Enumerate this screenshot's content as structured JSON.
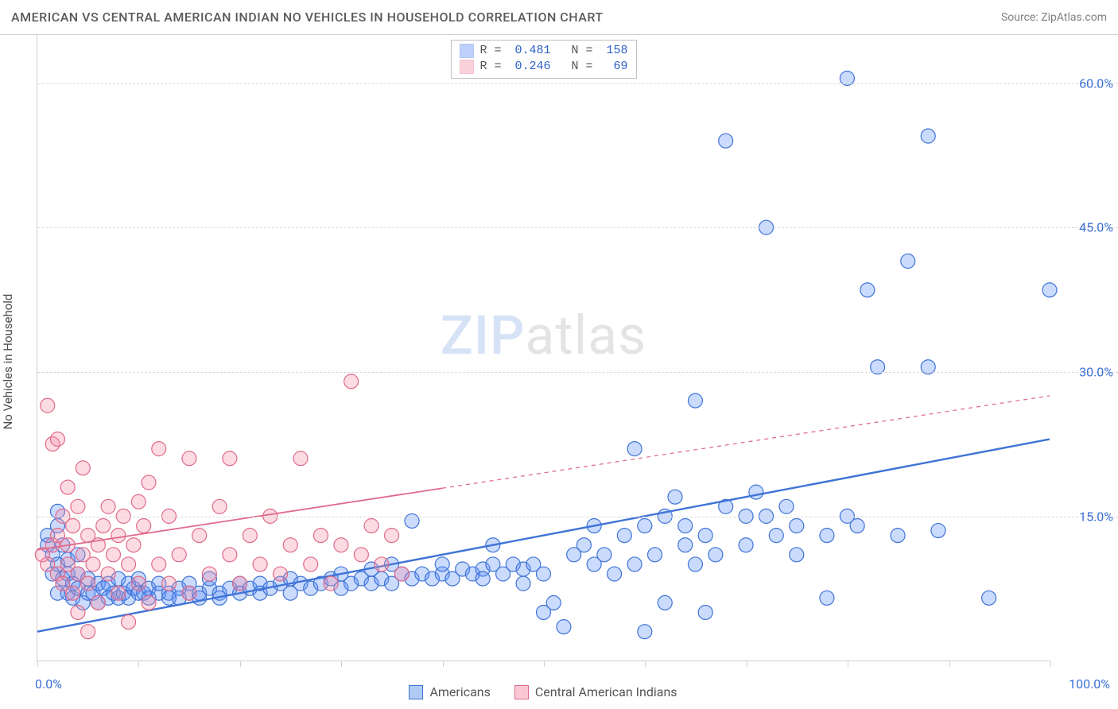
{
  "header": {
    "title": "AMERICAN VS CENTRAL AMERICAN INDIAN NO VEHICLES IN HOUSEHOLD CORRELATION CHART",
    "source": "Source: ZipAtlas.com"
  },
  "y_axis": {
    "label": "No Vehicles in Household"
  },
  "watermark": {
    "part1": "ZIP",
    "part2": "atlas"
  },
  "chart": {
    "type": "scatter",
    "background_color": "#ffffff",
    "grid_dash_color": "#d8d8d8",
    "axis_color": "#d0d0d0",
    "xlim": [
      0,
      100
    ],
    "ylim": [
      0,
      65
    ],
    "x_ticks": [
      0,
      10,
      20,
      30,
      40,
      50,
      60,
      70,
      80,
      90,
      100
    ],
    "x_min_label": "0.0%",
    "x_max_label": "100.0%",
    "y_grid": [
      15,
      30,
      45,
      60
    ],
    "y_tick_labels": [
      "15.0%",
      "30.0%",
      "45.0%",
      "60.0%"
    ],
    "y_tick_color": "#3b6fd6",
    "label_fontsize": 15,
    "tick_fontsize": 16,
    "marker_radius": 9,
    "marker_stroke_width": 1.2,
    "marker_fill_opacity": 0.32,
    "series": [
      {
        "name": "Americans",
        "color": "#5b8ff9",
        "stroke": "#3f73d6",
        "r_value": "0.481",
        "n_value": "158",
        "trend": {
          "y_at_x0": 3.0,
          "y_at_x100": 23.0,
          "solid_until_x": 100,
          "line_width": 2.4,
          "dash": ""
        },
        "points": [
          [
            1,
            12
          ],
          [
            1,
            13
          ],
          [
            1.5,
            9
          ],
          [
            1.5,
            11
          ],
          [
            2,
            10
          ],
          [
            2,
            14
          ],
          [
            2,
            15.5
          ],
          [
            2,
            7
          ],
          [
            2.5,
            8.5
          ],
          [
            2.5,
            12
          ],
          [
            3,
            9
          ],
          [
            3,
            10.5
          ],
          [
            3,
            7
          ],
          [
            3.5,
            6.5
          ],
          [
            3.5,
            8
          ],
          [
            4,
            7.5
          ],
          [
            4,
            9
          ],
          [
            4,
            11
          ],
          [
            4.5,
            6
          ],
          [
            5,
            7
          ],
          [
            5,
            8.5
          ],
          [
            5.5,
            7
          ],
          [
            6,
            6
          ],
          [
            6,
            8
          ],
          [
            6.5,
            7.5
          ],
          [
            7,
            6.5
          ],
          [
            7,
            8
          ],
          [
            7.5,
            7
          ],
          [
            8,
            6.5
          ],
          [
            8,
            8.5
          ],
          [
            8.5,
            7
          ],
          [
            9,
            6.5
          ],
          [
            9,
            8
          ],
          [
            9.5,
            7.5
          ],
          [
            10,
            7
          ],
          [
            10,
            8.5
          ],
          [
            10.5,
            7
          ],
          [
            11,
            7.5
          ],
          [
            11,
            6.5
          ],
          [
            12,
            7
          ],
          [
            12,
            8
          ],
          [
            13,
            7
          ],
          [
            13,
            6.5
          ],
          [
            14,
            7.5
          ],
          [
            14,
            6.5
          ],
          [
            15,
            7
          ],
          [
            15,
            8
          ],
          [
            16,
            7
          ],
          [
            16,
            6.5
          ],
          [
            17,
            7.5
          ],
          [
            17,
            8.5
          ],
          [
            18,
            7
          ],
          [
            18,
            6.5
          ],
          [
            19,
            7.5
          ],
          [
            20,
            8
          ],
          [
            20,
            7
          ],
          [
            21,
            7.5
          ],
          [
            22,
            8
          ],
          [
            22,
            7
          ],
          [
            23,
            7.5
          ],
          [
            24,
            8
          ],
          [
            25,
            8.5
          ],
          [
            25,
            7
          ],
          [
            26,
            8
          ],
          [
            27,
            7.5
          ],
          [
            28,
            8
          ],
          [
            29,
            8.5
          ],
          [
            30,
            7.5
          ],
          [
            30,
            9
          ],
          [
            31,
            8
          ],
          [
            32,
            8.5
          ],
          [
            33,
            8
          ],
          [
            33,
            9.5
          ],
          [
            34,
            8.5
          ],
          [
            35,
            8
          ],
          [
            35,
            10
          ],
          [
            36,
            9
          ],
          [
            37,
            8.5
          ],
          [
            37,
            14.5
          ],
          [
            38,
            9
          ],
          [
            39,
            8.5
          ],
          [
            40,
            9
          ],
          [
            40,
            10
          ],
          [
            41,
            8.5
          ],
          [
            42,
            9.5
          ],
          [
            43,
            9
          ],
          [
            44,
            9.5
          ],
          [
            44,
            8.5
          ],
          [
            45,
            10
          ],
          [
            45,
            12
          ],
          [
            46,
            9
          ],
          [
            47,
            10
          ],
          [
            48,
            9.5
          ],
          [
            48,
            8
          ],
          [
            49,
            10
          ],
          [
            50,
            5
          ],
          [
            50,
            9
          ],
          [
            51,
            6
          ],
          [
            52,
            3.5
          ],
          [
            53,
            11
          ],
          [
            54,
            12
          ],
          [
            55,
            10
          ],
          [
            55,
            14
          ],
          [
            56,
            11
          ],
          [
            57,
            9
          ],
          [
            58,
            13
          ],
          [
            59,
            10
          ],
          [
            59,
            22
          ],
          [
            60,
            3
          ],
          [
            60,
            14
          ],
          [
            61,
            11
          ],
          [
            62,
            6
          ],
          [
            62,
            15
          ],
          [
            63,
            17
          ],
          [
            64,
            12
          ],
          [
            64,
            14
          ],
          [
            65,
            10
          ],
          [
            65,
            27
          ],
          [
            66,
            5
          ],
          [
            66,
            13
          ],
          [
            67,
            11
          ],
          [
            68,
            16
          ],
          [
            68,
            54
          ],
          [
            70,
            15
          ],
          [
            70,
            12
          ],
          [
            71,
            17.5
          ],
          [
            72,
            45
          ],
          [
            72,
            15
          ],
          [
            73,
            13
          ],
          [
            74,
            16
          ],
          [
            75,
            14
          ],
          [
            75,
            11
          ],
          [
            78,
            13
          ],
          [
            78,
            6.5
          ],
          [
            80,
            15
          ],
          [
            80,
            60.5
          ],
          [
            81,
            14
          ],
          [
            82,
            38.5
          ],
          [
            83,
            30.5
          ],
          [
            85,
            13
          ],
          [
            86,
            41.5
          ],
          [
            88,
            54.5
          ],
          [
            88,
            30.5
          ],
          [
            89,
            13.5
          ],
          [
            94,
            6.5
          ],
          [
            100,
            38.5
          ]
        ]
      },
      {
        "name": "Central American Indians",
        "color": "#f78fa7",
        "stroke": "#e06a8a",
        "r_value": "0.246",
        "n_value": " 69",
        "trend": {
          "y_at_x0": 11.5,
          "y_at_x100": 27.5,
          "solid_until_x": 40,
          "line_width": 1.8,
          "dash": "5,5"
        },
        "points": [
          [
            0.5,
            11
          ],
          [
            1,
            26.5
          ],
          [
            1,
            10
          ],
          [
            1.5,
            12
          ],
          [
            1.5,
            22.5
          ],
          [
            2,
            9
          ],
          [
            2,
            13
          ],
          [
            2,
            23
          ],
          [
            2.5,
            8
          ],
          [
            2.5,
            15
          ],
          [
            3,
            10
          ],
          [
            3,
            12
          ],
          [
            3,
            18
          ],
          [
            3.5,
            7
          ],
          [
            3.5,
            14
          ],
          [
            4,
            9
          ],
          [
            4,
            16
          ],
          [
            4,
            5
          ],
          [
            4.5,
            11
          ],
          [
            4.5,
            20
          ],
          [
            5,
            8
          ],
          [
            5,
            13
          ],
          [
            5,
            3
          ],
          [
            5.5,
            10
          ],
          [
            6,
            12
          ],
          [
            6,
            6
          ],
          [
            6.5,
            14
          ],
          [
            7,
            9
          ],
          [
            7,
            16
          ],
          [
            7.5,
            11
          ],
          [
            8,
            7
          ],
          [
            8,
            13
          ],
          [
            8.5,
            15
          ],
          [
            9,
            10
          ],
          [
            9,
            4
          ],
          [
            9.5,
            12
          ],
          [
            10,
            16.5
          ],
          [
            10,
            8
          ],
          [
            10.5,
            14
          ],
          [
            11,
            6
          ],
          [
            11,
            18.5
          ],
          [
            12,
            10
          ],
          [
            12,
            22
          ],
          [
            13,
            8
          ],
          [
            13,
            15
          ],
          [
            14,
            11
          ],
          [
            15,
            21
          ],
          [
            15,
            7
          ],
          [
            16,
            13
          ],
          [
            17,
            9
          ],
          [
            18,
            16
          ],
          [
            19,
            11
          ],
          [
            19,
            21
          ],
          [
            20,
            8
          ],
          [
            21,
            13
          ],
          [
            22,
            10
          ],
          [
            23,
            15
          ],
          [
            24,
            9
          ],
          [
            25,
            12
          ],
          [
            26,
            21
          ],
          [
            27,
            10
          ],
          [
            28,
            13
          ],
          [
            29,
            8
          ],
          [
            30,
            12
          ],
          [
            31,
            29
          ],
          [
            32,
            11
          ],
          [
            33,
            14
          ],
          [
            34,
            10
          ],
          [
            35,
            13
          ],
          [
            36,
            9
          ]
        ]
      }
    ]
  },
  "legend": {
    "items": [
      {
        "label": "Americans",
        "fill": "#aecbf5",
        "stroke": "#3f73d6"
      },
      {
        "label": "Central American Indians",
        "fill": "#f9c8d4",
        "stroke": "#e06a8a"
      }
    ]
  }
}
